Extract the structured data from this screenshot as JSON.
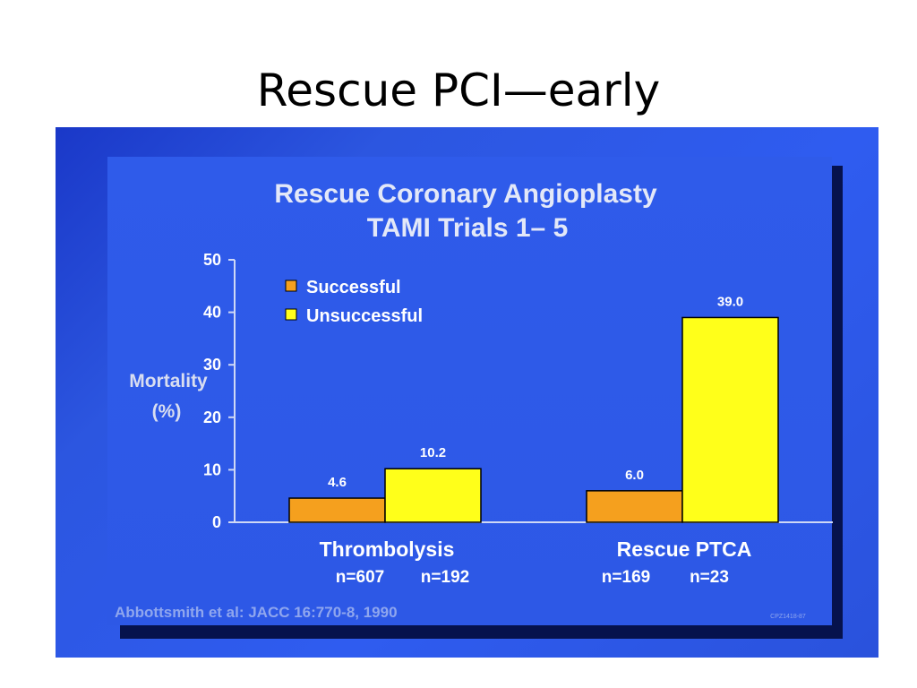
{
  "slide_title": "Rescue PCI—early",
  "chart_data": {
    "type": "bar",
    "title_line1": "Rescue Coronary Angioplasty",
    "title_line2": "TAMI Trials 1– 5",
    "ylabel_line1": "Mortality",
    "ylabel_line2": "(%)",
    "ylim": [
      0,
      50
    ],
    "yticks": [
      "0",
      "10",
      "20",
      "30",
      "40",
      "50"
    ],
    "ytick_values": [
      0,
      10,
      20,
      30,
      40,
      50
    ],
    "categories": [
      "Thrombolysis",
      "Rescue PTCA"
    ],
    "series": [
      {
        "name": "Successful",
        "color": "#f5a01e",
        "values": [
          4.6,
          6.0
        ],
        "labels": [
          "4.6",
          "6.0"
        ],
        "n": [
          "n=607",
          "n=169"
        ]
      },
      {
        "name": "Unsuccessful",
        "color": "#ffff1a",
        "values": [
          10.2,
          39.0
        ],
        "labels": [
          "10.2",
          "39.0"
        ],
        "n": [
          "n=192",
          "n=23"
        ]
      }
    ],
    "legend_position": "top-left",
    "grid": false,
    "citation": "Abbottsmith et al:  JACC 16:770-8, 1990",
    "slide_code": "CPZ1418-87"
  }
}
